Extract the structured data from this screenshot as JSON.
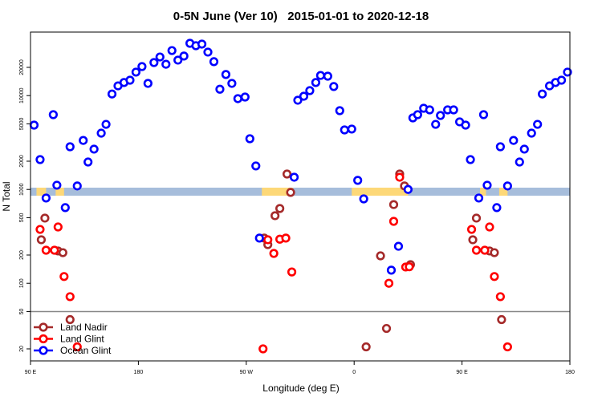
{
  "chart_data": {
    "type": "scatter",
    "title": "0-5N June (Ver 10)   2015-01-01 to 2020-12-18",
    "xlabel": "Longitude (deg E)",
    "ylabel": "N Total",
    "y_scale": "log",
    "xlim": [
      90,
      540
    ],
    "ylim": [
      15,
      47000
    ],
    "x_ticks": [
      {
        "value": 90,
        "label": "90 E"
      },
      {
        "value": 180,
        "label": "180"
      },
      {
        "value": 270,
        "label": "90 W"
      },
      {
        "value": 360,
        "label": "0"
      },
      {
        "value": 450,
        "label": "90 E"
      },
      {
        "value": 540,
        "label": "180"
      }
    ],
    "y_ticks": [
      {
        "value": 20,
        "label": "20"
      },
      {
        "value": 50,
        "label": "50"
      },
      {
        "value": 100,
        "label": "100"
      },
      {
        "value": 200,
        "label": "200"
      },
      {
        "value": 500,
        "label": "500"
      },
      {
        "value": 1000,
        "label": "1000"
      },
      {
        "value": 2000,
        "label": "2000"
      },
      {
        "value": 5000,
        "label": "5000"
      },
      {
        "value": 10000,
        "label": "10000"
      },
      {
        "value": 20000,
        "label": "20000"
      }
    ],
    "reference_line": 50,
    "legend_position": "bottom-left",
    "series": [
      {
        "name": "Land Nadir",
        "color": "#a52a2a",
        "points": [
          [
            102,
            495
          ],
          [
            99,
            291
          ],
          [
            113,
            221
          ],
          [
            117,
            212
          ],
          [
            123,
            41
          ],
          [
            285,
            303
          ],
          [
            288,
            258
          ],
          [
            294,
            525
          ],
          [
            298,
            626
          ],
          [
            304,
            1460
          ],
          [
            307,
            930
          ],
          [
            370,
            21
          ],
          [
            382,
            196
          ],
          [
            387,
            33
          ],
          [
            393,
            690
          ],
          [
            398,
            1460
          ],
          [
            402,
            1090
          ],
          [
            407,
            158
          ],
          [
            462,
            495
          ],
          [
            459,
            291
          ],
          [
            473,
            221
          ],
          [
            477,
            212
          ],
          [
            483,
            41
          ]
        ]
      },
      {
        "name": "Land Glint",
        "color": "#ff0000",
        "points": [
          [
            98,
            375
          ],
          [
            103,
            225
          ],
          [
            110,
            225
          ],
          [
            113,
            398
          ],
          [
            118,
            118
          ],
          [
            123,
            72
          ],
          [
            129,
            21
          ],
          [
            284,
            20
          ],
          [
            288,
            291
          ],
          [
            293,
            208
          ],
          [
            298,
            295
          ],
          [
            303,
            303
          ],
          [
            308,
            132
          ],
          [
            389,
            100
          ],
          [
            393,
            457
          ],
          [
            398,
            1350
          ],
          [
            403,
            149
          ],
          [
            406,
            150
          ],
          [
            458,
            375
          ],
          [
            462,
            225
          ],
          [
            469,
            225
          ],
          [
            473,
            398
          ],
          [
            477,
            118
          ],
          [
            482,
            72
          ],
          [
            488,
            21
          ]
        ]
      },
      {
        "name": "Ocean Glint",
        "color": "#0000ff",
        "points": [
          [
            93,
            4850
          ],
          [
            98,
            2080
          ],
          [
            103,
            810
          ],
          [
            109,
            6260
          ],
          [
            112,
            1110
          ],
          [
            119,
            640
          ],
          [
            123,
            2850
          ],
          [
            129,
            1090
          ],
          [
            134,
            3330
          ],
          [
            138,
            1960
          ],
          [
            143,
            2690
          ],
          [
            149,
            3980
          ],
          [
            153,
            4940
          ],
          [
            158,
            10400
          ],
          [
            163,
            12700
          ],
          [
            168,
            13800
          ],
          [
            173,
            14600
          ],
          [
            178,
            17800
          ],
          [
            183,
            20400
          ],
          [
            188,
            13500
          ],
          [
            193,
            22500
          ],
          [
            198,
            25800
          ],
          [
            203,
            21600
          ],
          [
            208,
            30200
          ],
          [
            213,
            23900
          ],
          [
            218,
            26400
          ],
          [
            223,
            36100
          ],
          [
            228,
            34000
          ],
          [
            233,
            35400
          ],
          [
            238,
            29100
          ],
          [
            243,
            23000
          ],
          [
            248,
            11700
          ],
          [
            253,
            16800
          ],
          [
            258,
            13500
          ],
          [
            263,
            9290
          ],
          [
            269,
            9660
          ],
          [
            273,
            3470
          ],
          [
            278,
            1780
          ],
          [
            281,
            303
          ],
          [
            310,
            1350
          ],
          [
            313,
            8930
          ],
          [
            318,
            9850
          ],
          [
            323,
            11300
          ],
          [
            328,
            13800
          ],
          [
            332,
            16400
          ],
          [
            338,
            16100
          ],
          [
            343,
            12500
          ],
          [
            348,
            6910
          ],
          [
            352,
            4310
          ],
          [
            358,
            4400
          ],
          [
            363,
            1250
          ],
          [
            368,
            793
          ],
          [
            391,
            138
          ],
          [
            397,
            248
          ],
          [
            405,
            1000
          ],
          [
            409,
            5790
          ],
          [
            413,
            6260
          ],
          [
            418,
            7330
          ],
          [
            423,
            7050
          ],
          [
            428,
            4940
          ],
          [
            432,
            6140
          ],
          [
            438,
            7050
          ],
          [
            443,
            7050
          ],
          [
            448,
            5250
          ],
          [
            453,
            4850
          ],
          [
            457,
            2080
          ],
          [
            464,
            810
          ],
          [
            468,
            6260
          ],
          [
            471,
            1110
          ],
          [
            479,
            640
          ],
          [
            482,
            2850
          ],
          [
            488,
            1090
          ],
          [
            493,
            3330
          ],
          [
            498,
            1960
          ],
          [
            502,
            2690
          ],
          [
            508,
            3980
          ],
          [
            513,
            4940
          ],
          [
            517,
            10400
          ],
          [
            523,
            12700
          ],
          [
            528,
            13800
          ],
          [
            533,
            14600
          ],
          [
            538,
            17800
          ]
        ]
      }
    ]
  }
}
